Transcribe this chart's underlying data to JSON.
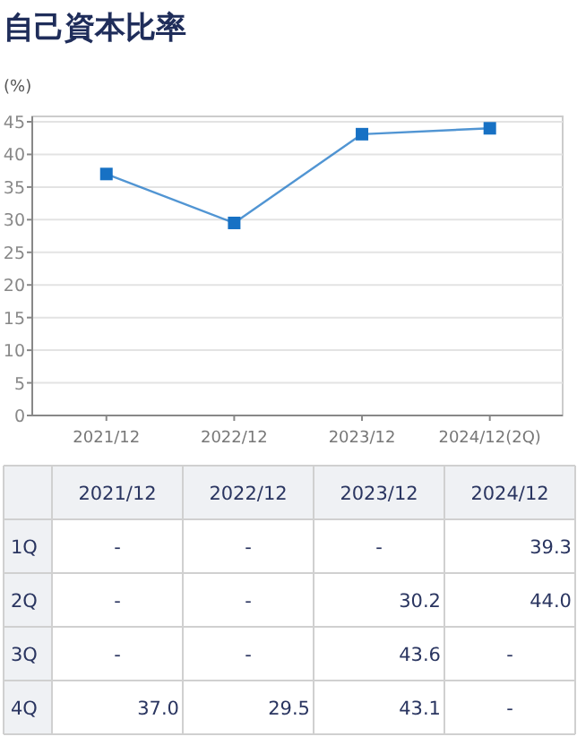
{
  "chart_data": [
    {
      "type": "line",
      "title": "自己資本比率",
      "ylabel": "(%)",
      "categories": [
        "2021/12",
        "2022/12",
        "2023/12",
        "2024/12(2Q)"
      ],
      "series": [
        {
          "color": "#1771c4",
          "values": [
            37.0,
            29.5,
            43.1,
            44.0
          ]
        }
      ],
      "ylim": [
        0,
        45
      ],
      "yticks": [
        0,
        5,
        10,
        15,
        20,
        25,
        30,
        35,
        40,
        45
      ],
      "grid": "y",
      "marker": "square",
      "line_style": "solid"
    },
    {
      "type": "heatmap",
      "categories": [
        "2021/12",
        "2022/12",
        "2023/12",
        "2024/12"
      ],
      "y_categories": [
        "1Q",
        "2Q",
        "3Q",
        "4Q"
      ],
      "cells": [
        [
          null,
          null,
          null,
          39.3
        ],
        [
          null,
          null,
          30.2,
          44.0
        ],
        [
          null,
          null,
          43.6,
          null
        ],
        [
          37.0,
          29.5,
          43.1,
          null
        ]
      ],
      "cell_labels": [
        [
          "-",
          "-",
          "-",
          "39.3"
        ],
        [
          "-",
          "-",
          "30.2",
          "44.0"
        ],
        [
          "-",
          "-",
          "43.6",
          "-"
        ],
        [
          "37.0",
          "29.5",
          "43.1",
          "-"
        ]
      ]
    }
  ]
}
